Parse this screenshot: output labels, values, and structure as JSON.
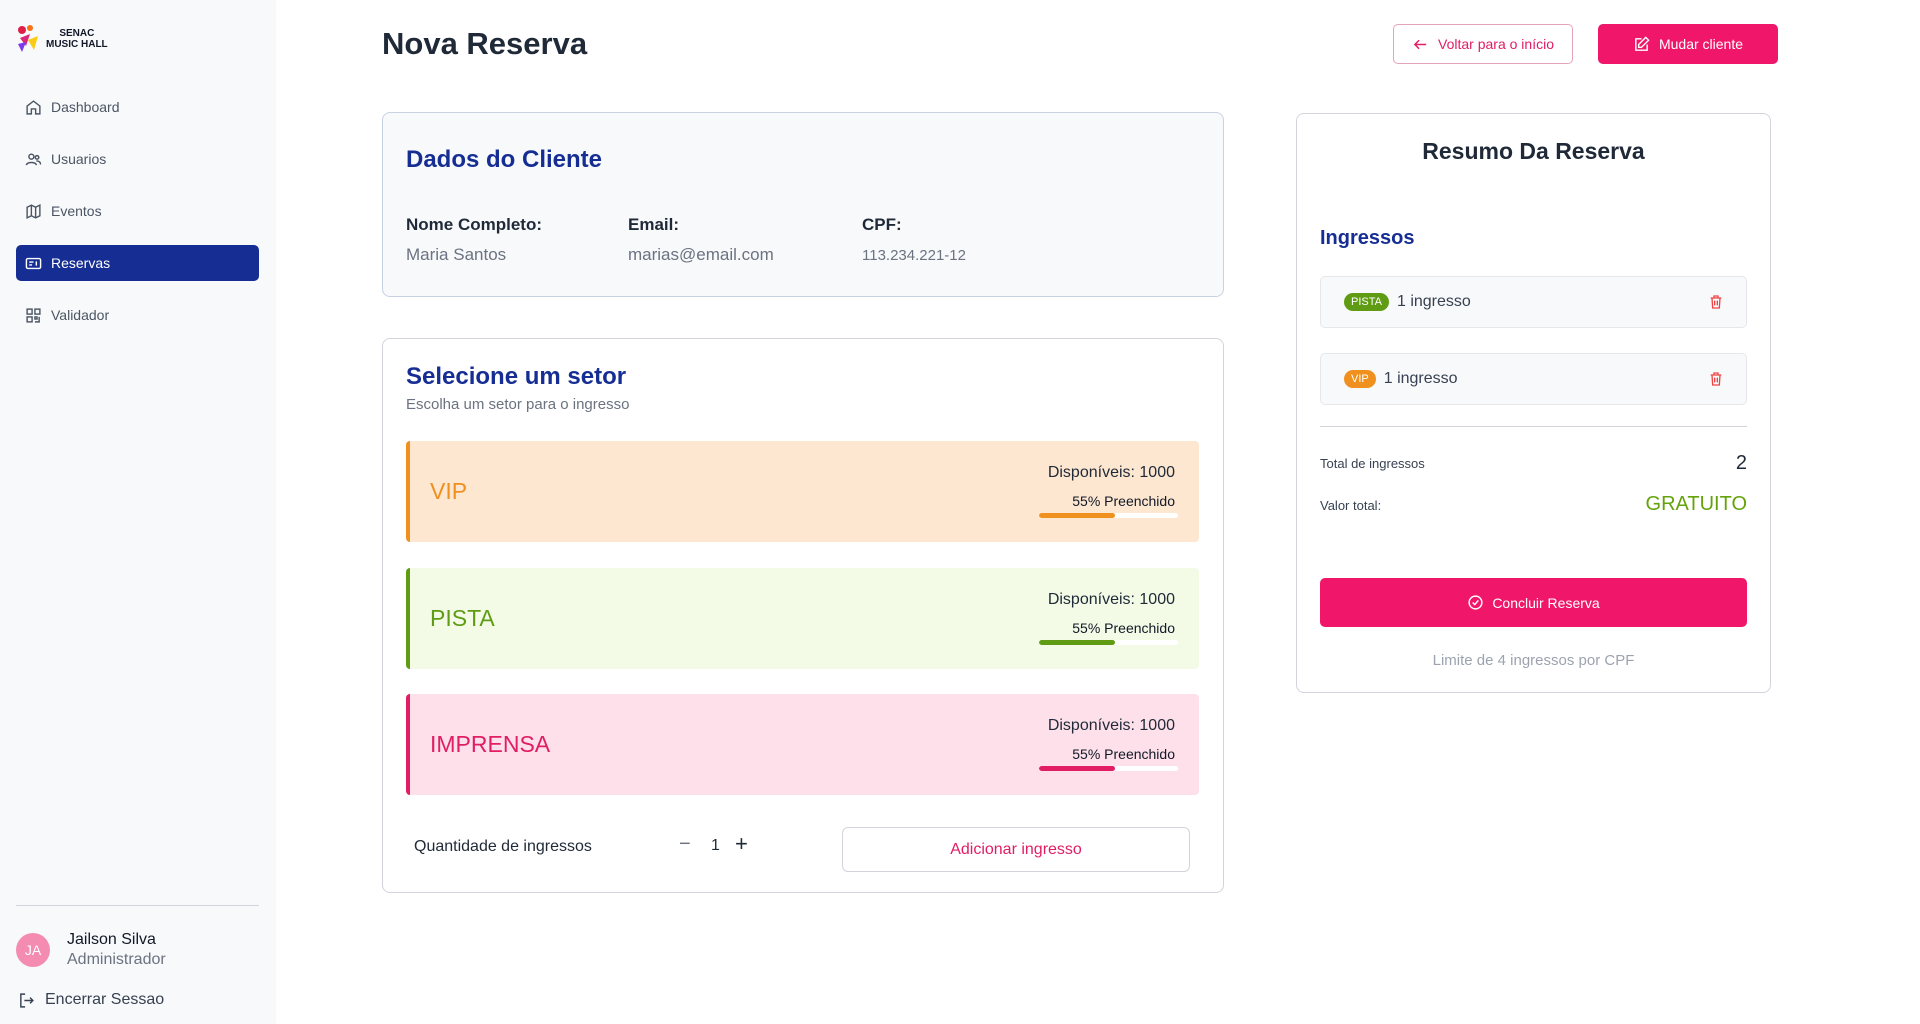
{
  "brand": {
    "line1": "SENAC",
    "line2": "MUSIC HALL"
  },
  "nav": [
    {
      "label": "Dashboard",
      "icon": "home-icon",
      "active": false
    },
    {
      "label": "Usuarios",
      "icon": "users-icon",
      "active": false
    },
    {
      "label": "Eventos",
      "icon": "map-icon",
      "active": false
    },
    {
      "label": "Reservas",
      "icon": "ticket-icon",
      "active": true
    },
    {
      "label": "Validador",
      "icon": "qr-code-icon",
      "active": false
    }
  ],
  "user": {
    "initials": "JA",
    "name": "Jailson Silva",
    "role": "Administrador"
  },
  "logout_label": "Encerrar Sessao",
  "header": {
    "title": "Nova Reserva",
    "back_label": "Voltar para o início",
    "change_label": "Mudar cliente"
  },
  "client": {
    "title": "Dados do Cliente",
    "name_label": "Nome Completo:",
    "name": "Maria Santos",
    "email_label": "Email:",
    "email": "marias@email.com",
    "cpf_label": "CPF:",
    "cpf": "113.234.221-12"
  },
  "sectors": {
    "title": "Selecione um setor",
    "subtitle": "Escolha um setor para o ingresso",
    "items": [
      {
        "name": "VIP",
        "available": "Disponíveis: 1000",
        "filled": "55% Preenchido",
        "fill_fraction": 0.55,
        "text_color": "#f0901e",
        "border_color": "#f0901e",
        "bg_color": "#fde7d0",
        "bar_color": "#f0901e"
      },
      {
        "name": "PISTA",
        "available": "Disponíveis: 1000",
        "filled": "55% Preenchido",
        "fill_fraction": 0.55,
        "text_color": "#5f9c14",
        "border_color": "#5f9c14",
        "bg_color": "#f3fbe7",
        "bar_color": "#5f9c14"
      },
      {
        "name": "IMPRENSA",
        "available": "Disponíveis: 1000",
        "filled": "55% Preenchido",
        "fill_fraction": 0.55,
        "text_color": "#e11d63",
        "border_color": "#e11d63",
        "bg_color": "#fde0e9",
        "bar_color": "#e11d63"
      }
    ],
    "quantity_label": "Quantidade de ingressos",
    "quantity_minus": "−",
    "quantity_value": "1",
    "quantity_plus": "+",
    "add_label": "Adicionar ingresso"
  },
  "summary": {
    "title": "Resumo Da Reserva",
    "tickets_title": "Ingressos",
    "tickets": [
      {
        "badge": "PISTA",
        "badge_color": "#5f9c14",
        "qty": "1 ingresso"
      },
      {
        "badge": "VIP",
        "badge_color": "#f0901e",
        "qty": "1 ingresso"
      }
    ],
    "total_label": "Total de ingressos",
    "total_value": "2",
    "valor_label": "Valor total:",
    "valor_value": "GRATUITO",
    "concluir_label": "Concluir Reserva",
    "limit_text": "Limite de 4 ingressos por CPF"
  },
  "colors": {
    "primary": "#f0176a",
    "navy": "#162e93",
    "sidebar_bg": "#f8f9fb",
    "success": "#65a30d"
  }
}
